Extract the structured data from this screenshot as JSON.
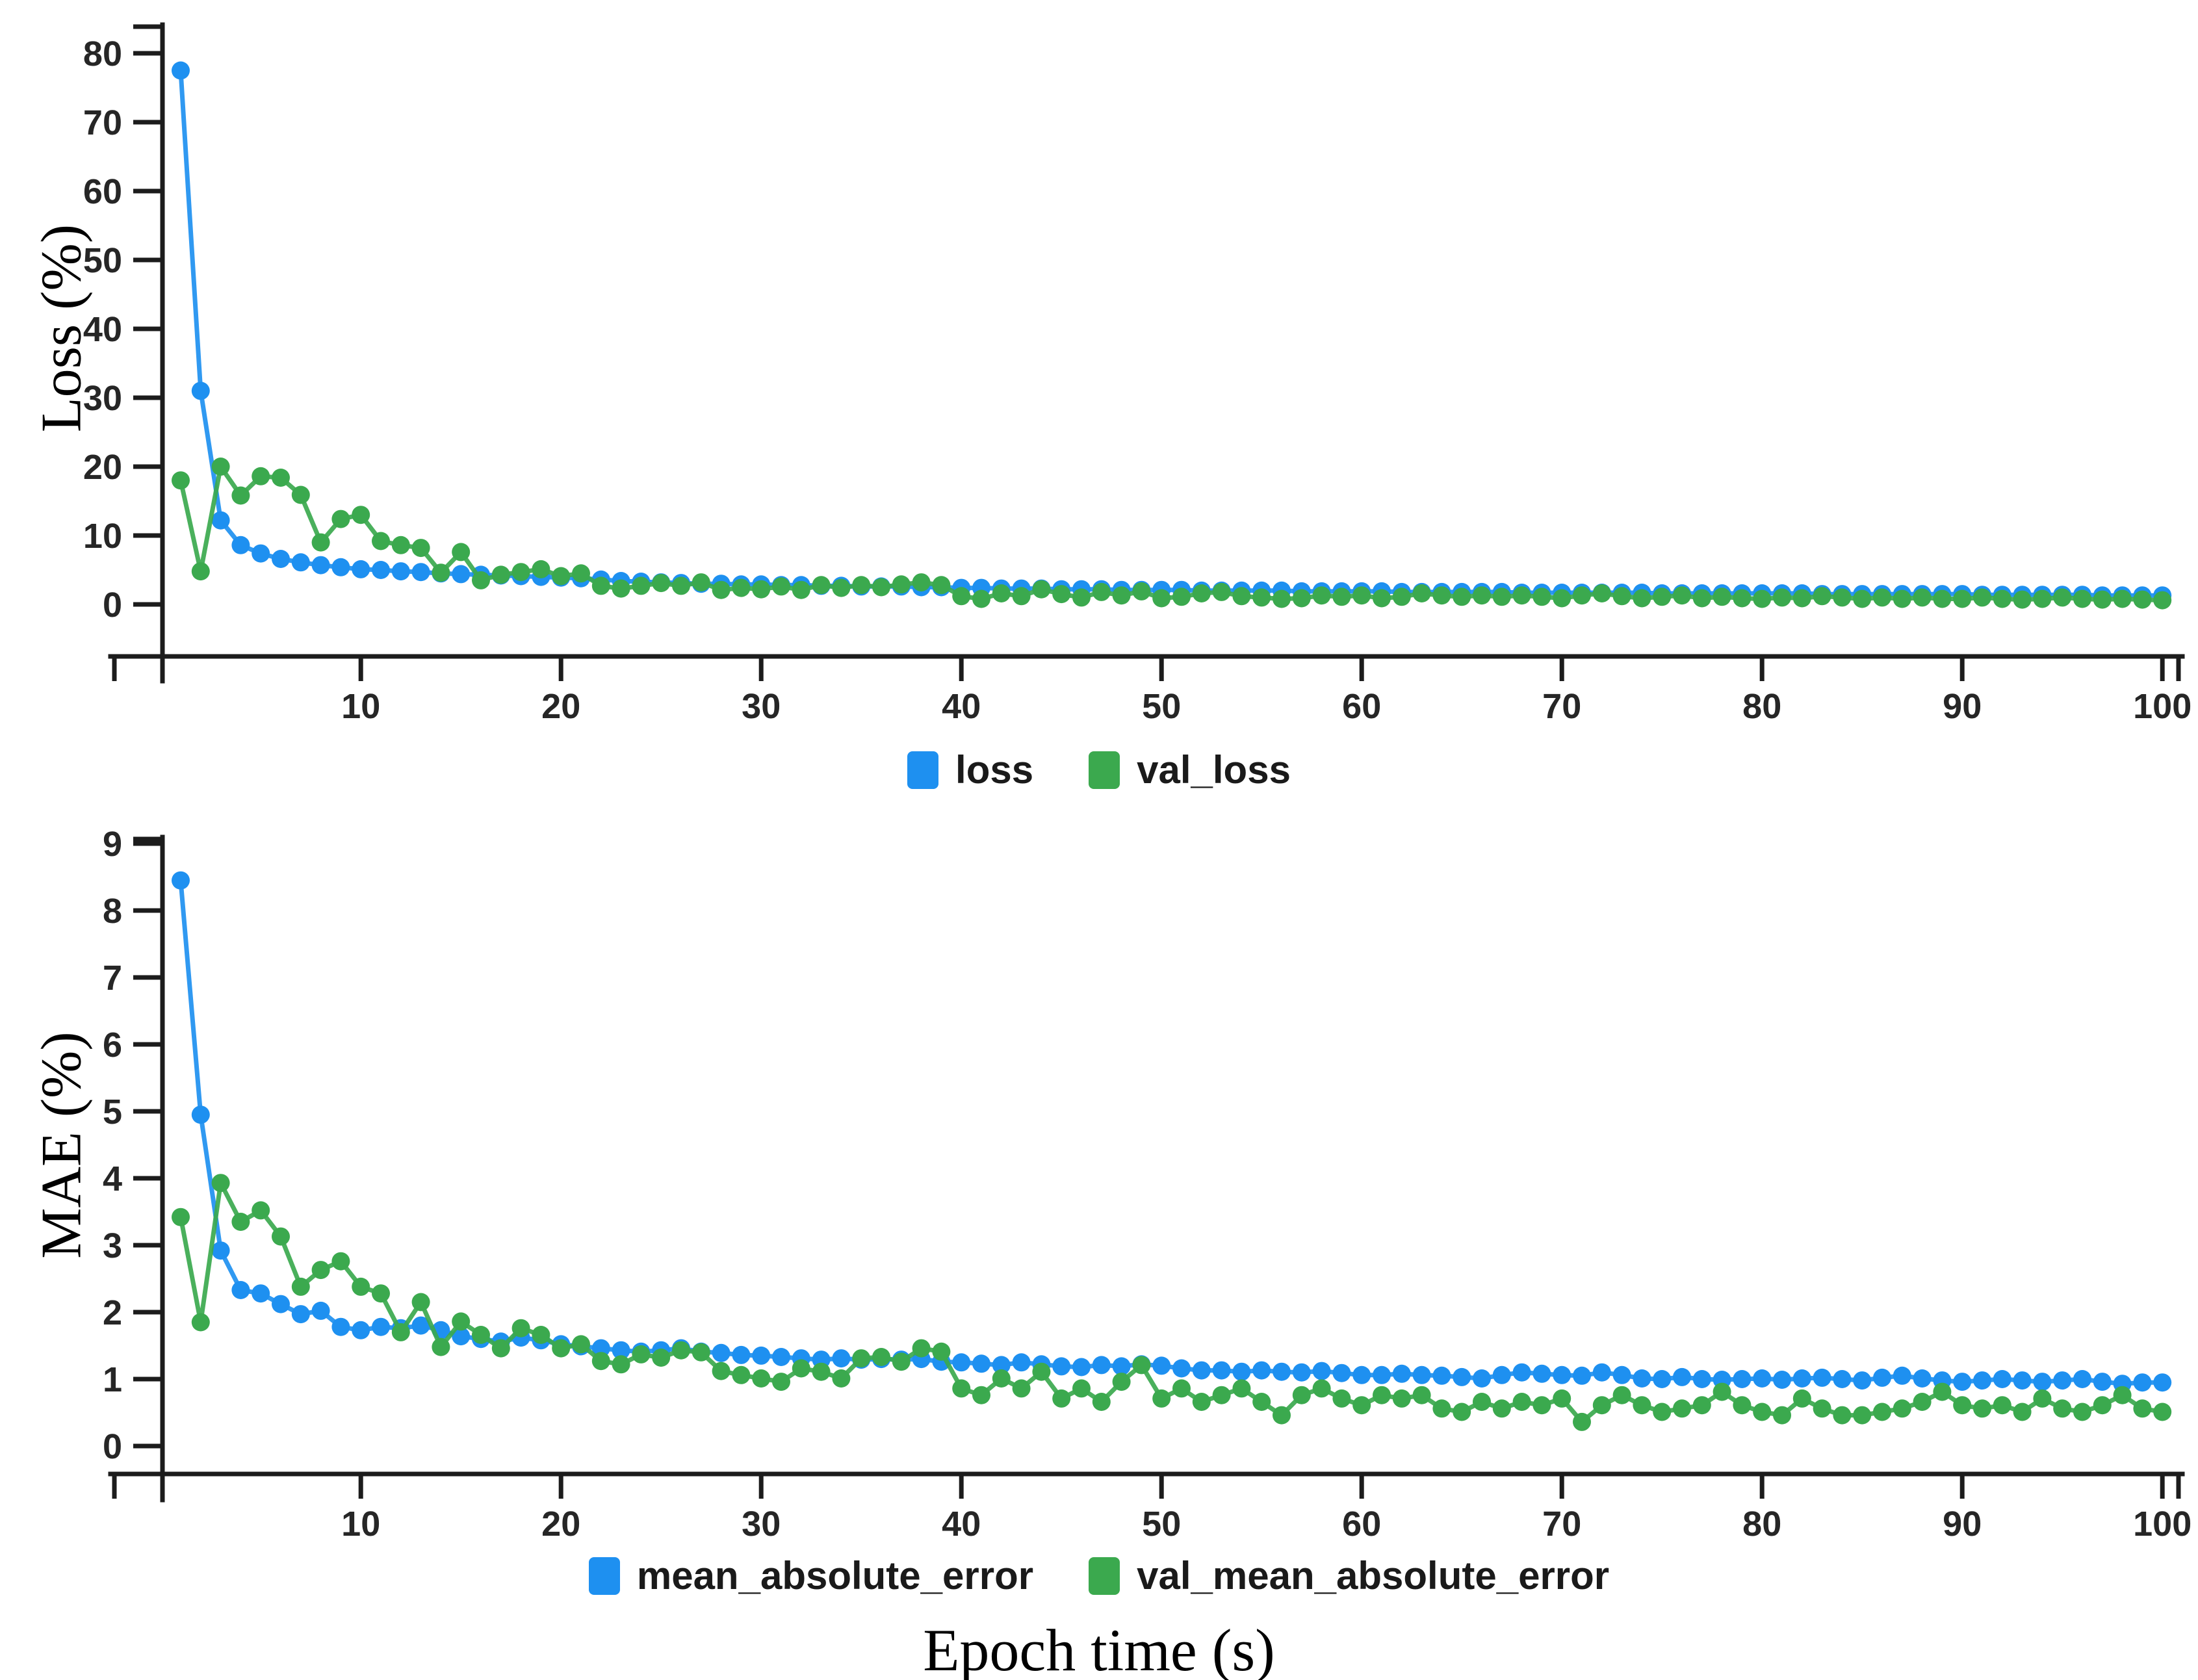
{
  "xlabel": "Epoch time (s)",
  "colors": {
    "loss_blue": "#1E90F0",
    "val_green": "#3BA94E",
    "axis": "#1c1c1c",
    "tick_text": "#262626",
    "background": "#ffffff"
  },
  "chart_data": [
    {
      "type": "line",
      "title": "",
      "ylabel": "Loss (%)",
      "xlabel": "",
      "x_description": "epochs 1-100",
      "xlim": [
        1,
        100
      ],
      "ylim": [
        0,
        80
      ],
      "grid": false,
      "legend_position": "bottom",
      "x_ticks": [
        10,
        20,
        30,
        40,
        50,
        60,
        70,
        80,
        90,
        100
      ],
      "y_ticks": [
        0,
        10,
        20,
        30,
        40,
        50,
        60,
        70,
        80
      ],
      "series": [
        {
          "name": "loss",
          "color": "#1E90F0",
          "values": [
            77.5,
            31,
            12.2,
            8.6,
            7.4,
            6.6,
            6.1,
            5.7,
            5.4,
            5.1,
            5.0,
            4.8,
            4.7,
            4.5,
            4.4,
            4.3,
            4.2,
            4.1,
            4.0,
            3.9,
            3.8,
            3.6,
            3.4,
            3.3,
            3.2,
            3.1,
            3.0,
            3.0,
            2.9,
            2.9,
            2.8,
            2.8,
            2.7,
            2.7,
            2.6,
            2.6,
            2.6,
            2.5,
            2.5,
            2.4,
            2.4,
            2.3,
            2.3,
            2.3,
            2.2,
            2.2,
            2.2,
            2.1,
            2.1,
            2.1,
            2.1,
            2.0,
            2.0,
            2.0,
            2.0,
            2.0,
            1.9,
            1.9,
            1.9,
            1.9,
            1.9,
            1.8,
            1.8,
            1.8,
            1.8,
            1.8,
            1.8,
            1.7,
            1.7,
            1.7,
            1.7,
            1.7,
            1.7,
            1.7,
            1.6,
            1.6,
            1.6,
            1.6,
            1.6,
            1.6,
            1.6,
            1.6,
            1.5,
            1.5,
            1.5,
            1.5,
            1.5,
            1.5,
            1.5,
            1.5,
            1.4,
            1.4,
            1.4,
            1.4,
            1.4,
            1.4,
            1.3,
            1.3,
            1.3,
            1.3
          ]
        },
        {
          "name": "val_loss",
          "color": "#3BA94E",
          "values": [
            18.0,
            4.8,
            20.0,
            15.8,
            18.6,
            18.4,
            15.9,
            9.0,
            12.4,
            13.0,
            9.2,
            8.6,
            8.2,
            4.6,
            7.6,
            3.5,
            4.3,
            4.7,
            5.1,
            4.1,
            4.5,
            2.7,
            2.3,
            2.7,
            3.1,
            2.7,
            3.2,
            2.1,
            2.4,
            2.2,
            2.6,
            2.1,
            2.8,
            2.4,
            2.8,
            2.5,
            2.9,
            3.2,
            2.8,
            1.2,
            0.8,
            1.6,
            1.2,
            2.2,
            1.5,
            1.0,
            1.8,
            1.3,
            1.9,
            0.9,
            1.1,
            1.6,
            1.8,
            1.2,
            1.0,
            0.8,
            0.9,
            1.3,
            1.1,
            1.3,
            0.9,
            1.1,
            1.6,
            1.3,
            1.1,
            1.3,
            1.1,
            1.3,
            1.1,
            0.9,
            1.3,
            1.6,
            1.2,
            0.9,
            1.1,
            1.3,
            0.9,
            1.1,
            0.9,
            0.8,
            1.0,
            0.9,
            1.2,
            1.0,
            0.8,
            1.0,
            0.8,
            1.0,
            0.8,
            0.8,
            1.0,
            0.8,
            0.7,
            0.8,
            1.0,
            0.8,
            0.7,
            0.8,
            0.7,
            0.6
          ]
        }
      ]
    },
    {
      "type": "line",
      "title": "",
      "ylabel": "MAE (%)",
      "xlabel": "",
      "x_description": "epochs 1-100",
      "xlim": [
        1,
        100
      ],
      "ylim": [
        0,
        9
      ],
      "grid": false,
      "legend_position": "bottom",
      "x_ticks": [
        10,
        20,
        30,
        40,
        50,
        60,
        70,
        80,
        90,
        100
      ],
      "y_ticks": [
        0,
        1,
        2,
        3,
        4,
        5,
        6,
        7,
        8,
        9
      ],
      "series": [
        {
          "name": "mean_absolute_error",
          "color": "#1E90F0",
          "values": [
            8.45,
            4.95,
            2.92,
            2.33,
            2.28,
            2.12,
            1.97,
            2.02,
            1.78,
            1.73,
            1.78,
            1.76,
            1.8,
            1.73,
            1.64,
            1.6,
            1.56,
            1.62,
            1.58,
            1.52,
            1.49,
            1.46,
            1.43,
            1.41,
            1.43,
            1.46,
            1.41,
            1.39,
            1.36,
            1.35,
            1.33,
            1.31,
            1.29,
            1.31,
            1.29,
            1.3,
            1.29,
            1.3,
            1.26,
            1.25,
            1.23,
            1.21,
            1.25,
            1.22,
            1.19,
            1.18,
            1.21,
            1.19,
            1.22,
            1.2,
            1.16,
            1.13,
            1.13,
            1.11,
            1.13,
            1.11,
            1.1,
            1.12,
            1.09,
            1.06,
            1.06,
            1.08,
            1.06,
            1.05,
            1.03,
            1.01,
            1.06,
            1.1,
            1.08,
            1.06,
            1.05,
            1.1,
            1.06,
            1.01,
            1.0,
            1.03,
            1.0,
            0.99,
            1.0,
            1.01,
            0.99,
            1.01,
            1.02,
            1.0,
            0.98,
            1.02,
            1.05,
            1.01,
            0.98,
            0.96,
            0.98,
            1.0,
            0.98,
            0.96,
            0.98,
            1.0,
            0.96,
            0.93,
            0.95,
            0.95
          ]
        },
        {
          "name": "val_mean_absolute_error",
          "color": "#3BA94E",
          "values": [
            3.42,
            1.85,
            3.93,
            3.35,
            3.52,
            3.13,
            2.38,
            2.63,
            2.76,
            2.38,
            2.28,
            1.7,
            2.15,
            1.48,
            1.86,
            1.66,
            1.46,
            1.76,
            1.66,
            1.46,
            1.52,
            1.27,
            1.22,
            1.37,
            1.32,
            1.43,
            1.4,
            1.12,
            1.06,
            1.01,
            0.96,
            1.16,
            1.11,
            1.01,
            1.31,
            1.33,
            1.26,
            1.46,
            1.41,
            0.86,
            0.76,
            1.01,
            0.86,
            1.11,
            0.71,
            0.86,
            0.66,
            0.96,
            1.21,
            0.71,
            0.86,
            0.66,
            0.76,
            0.86,
            0.66,
            0.46,
            0.76,
            0.86,
            0.71,
            0.61,
            0.76,
            0.71,
            0.76,
            0.56,
            0.51,
            0.66,
            0.56,
            0.66,
            0.61,
            0.71,
            0.36,
            0.61,
            0.76,
            0.61,
            0.51,
            0.56,
            0.61,
            0.81,
            0.61,
            0.51,
            0.46,
            0.71,
            0.56,
            0.46,
            0.46,
            0.51,
            0.56,
            0.66,
            0.81,
            0.61,
            0.56,
            0.61,
            0.51,
            0.71,
            0.56,
            0.51,
            0.61,
            0.76,
            0.56,
            0.51
          ]
        }
      ]
    }
  ]
}
